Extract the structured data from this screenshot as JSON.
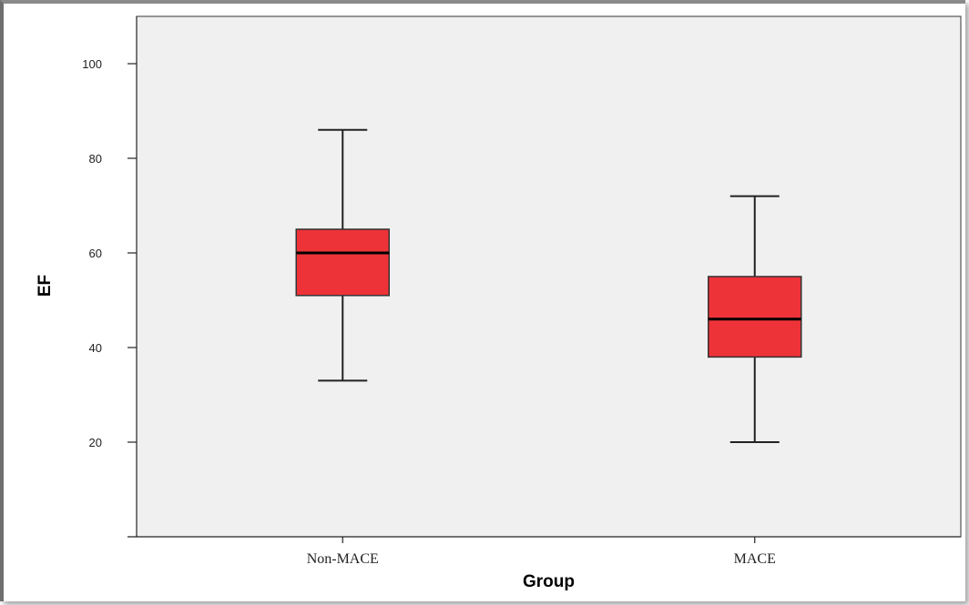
{
  "chart_data": {
    "type": "box",
    "xlabel": "Group",
    "ylabel": "EF",
    "ylim": [
      0,
      110
    ],
    "yticks": [
      20,
      40,
      60,
      80,
      100
    ],
    "categories": [
      "Non-MACE",
      "MACE"
    ],
    "boxes": [
      {
        "category": "Non-MACE",
        "min": 33,
        "q1": 51,
        "median": 60,
        "q3": 65,
        "max": 86
      },
      {
        "category": "MACE",
        "min": 20,
        "q1": 38,
        "median": 46,
        "q3": 55,
        "max": 72
      }
    ],
    "box_color": "#ee3338",
    "plot_background": "#f0f0f0",
    "grid": false
  }
}
